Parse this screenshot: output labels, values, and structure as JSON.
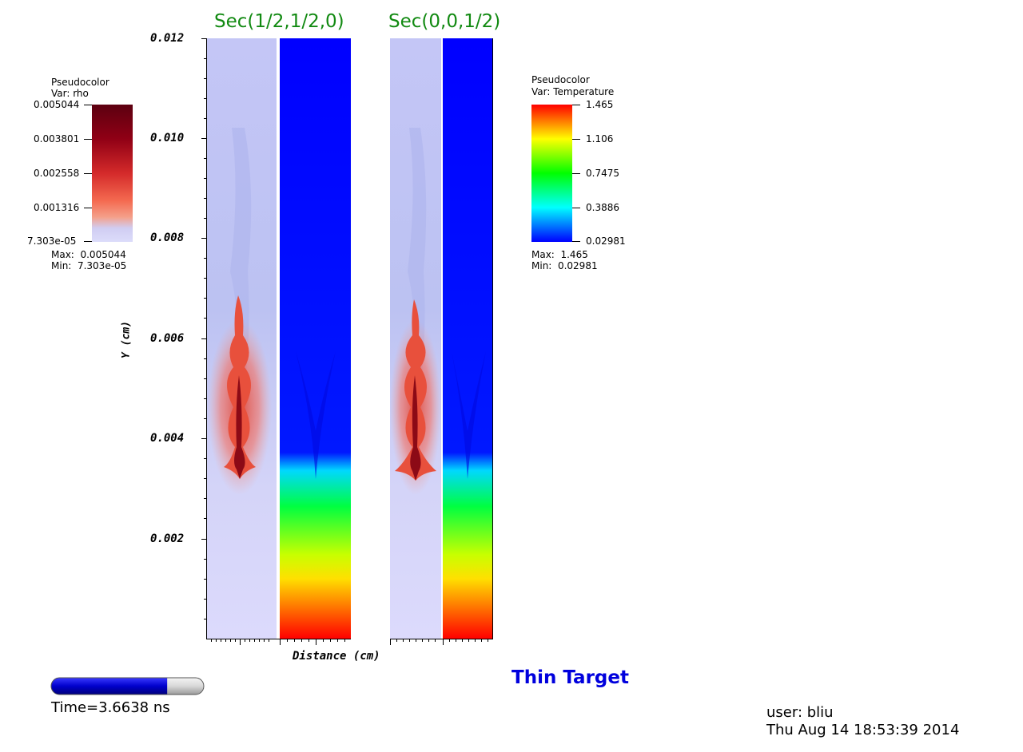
{
  "section_titles": {
    "left": "Sec(1/2,1/2,0)",
    "right": "Sec(0,0,1/2)"
  },
  "axes": {
    "xlabel": "Distance (cm)",
    "ylabel": "Y (cm)",
    "y_ticks": [
      "0.012",
      "0.010",
      "0.008",
      "0.006",
      "0.004",
      "0.002"
    ]
  },
  "legend_rho": {
    "plot_type": "Pseudocolor",
    "var": "Var: rho",
    "ticks": [
      "0.005044",
      "0.003801",
      "0.002558",
      "0.001316",
      "7.303e-05"
    ],
    "max_label": "Max:  0.005044",
    "min_label": "Min:  7.303e-05"
  },
  "legend_temp": {
    "plot_type": "Pseudocolor",
    "var": "Var: Temperature",
    "ticks": [
      "1.465",
      "1.106",
      "0.7475",
      "0.3886",
      "0.02981"
    ],
    "max_label": "Max:  1.465",
    "min_label": "Min:  0.02981"
  },
  "time_slider": {
    "label": "Time=3.6638 ns",
    "progress": 0.76
  },
  "title": "Thin Target",
  "user_info": {
    "user": "user: bliu",
    "date": "Thu Aug 14 18:53:39 2014"
  },
  "colors": {
    "section_title": "#128a12",
    "plot_title": "#0000dd",
    "slider_fill": "#0000cc"
  }
}
